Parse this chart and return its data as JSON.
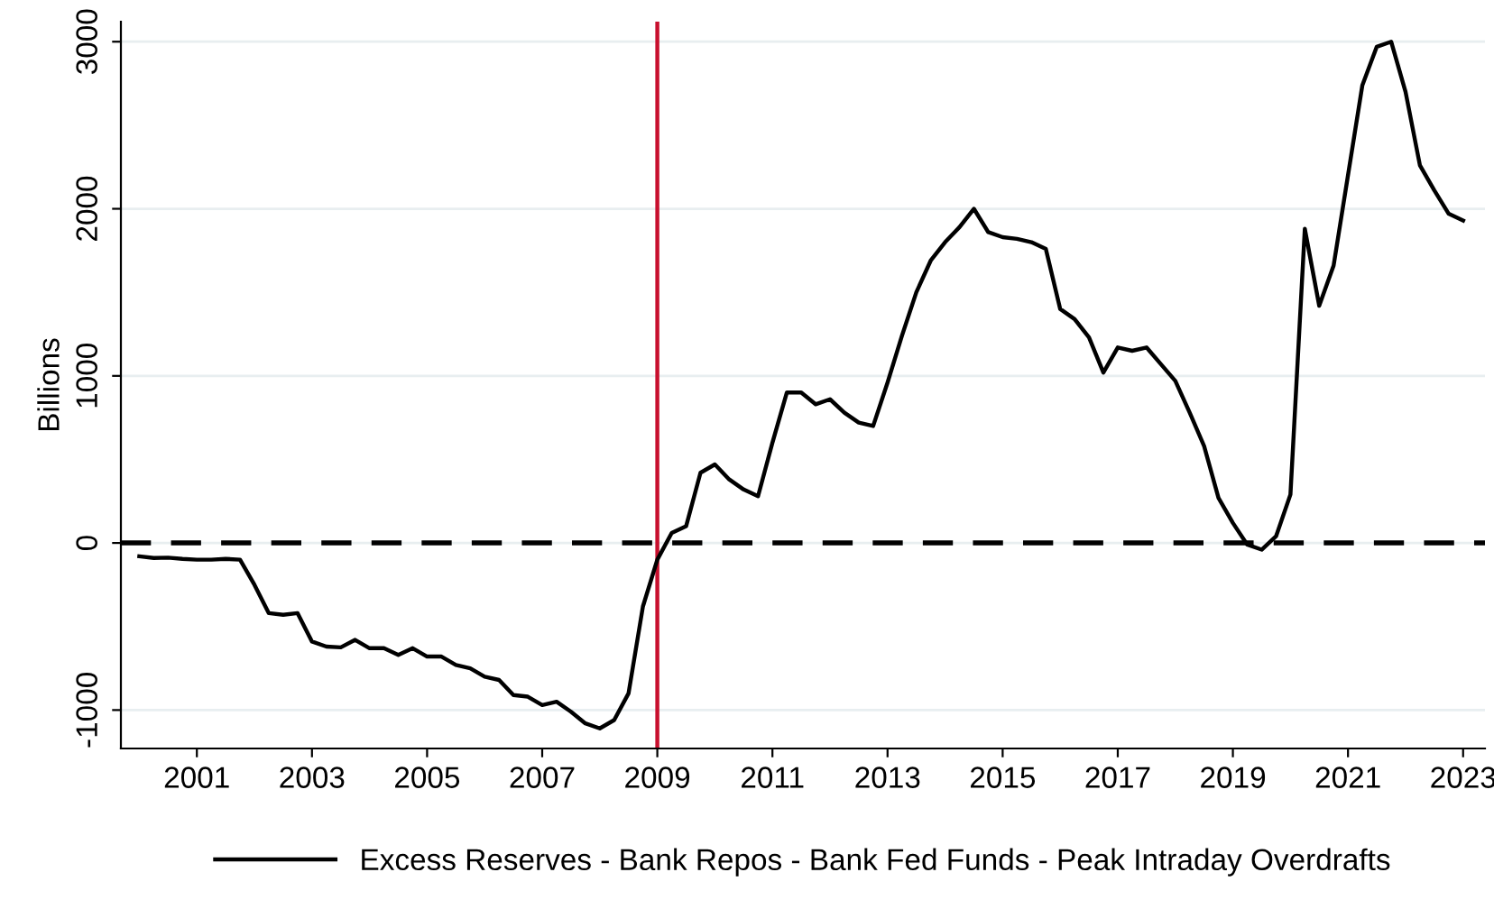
{
  "chart_data": {
    "type": "line",
    "ylabel": "Billions",
    "x": [
      2000.0,
      2000.25,
      2000.5,
      2000.75,
      2001.0,
      2001.25,
      2001.5,
      2001.75,
      2002.0,
      2002.25,
      2002.5,
      2002.75,
      2003.0,
      2003.25,
      2003.5,
      2003.75,
      2004.0,
      2004.25,
      2004.5,
      2004.75,
      2005.0,
      2005.25,
      2005.5,
      2005.75,
      2006.0,
      2006.25,
      2006.5,
      2006.75,
      2007.0,
      2007.25,
      2007.5,
      2007.75,
      2008.0,
      2008.25,
      2008.5,
      2008.75,
      2009.0,
      2009.25,
      2009.5,
      2009.75,
      2010.0,
      2010.25,
      2010.5,
      2010.75,
      2011.0,
      2011.25,
      2011.5,
      2011.75,
      2012.0,
      2012.25,
      2012.5,
      2012.75,
      2013.0,
      2013.25,
      2013.5,
      2013.75,
      2014.0,
      2014.25,
      2014.5,
      2014.75,
      2015.0,
      2015.25,
      2015.5,
      2015.75,
      2016.0,
      2016.25,
      2016.5,
      2016.75,
      2017.0,
      2017.25,
      2017.5,
      2017.75,
      2018.0,
      2018.25,
      2018.5,
      2018.75,
      2019.0,
      2019.25,
      2019.5,
      2019.75,
      2020.0,
      2020.25,
      2020.5,
      2020.75,
      2021.0,
      2021.25,
      2021.5,
      2021.75,
      2022.0,
      2022.25,
      2022.5,
      2022.75,
      2023.0
    ],
    "series": [
      {
        "name": "Excess Reserves - Bank Repos - Bank Fed Funds - Peak Intraday Overdrafts",
        "color": "#000000",
        "values": [
          -80,
          -90,
          -88,
          -95,
          -100,
          -100,
          -95,
          -100,
          -250,
          -420,
          -430,
          -420,
          -590,
          -620,
          -625,
          -580,
          -630,
          -630,
          -670,
          -630,
          -680,
          -680,
          -730,
          -750,
          -800,
          -820,
          -910,
          -920,
          -970,
          -950,
          -1010,
          -1080,
          -1110,
          -1060,
          -900,
          -380,
          -100,
          60,
          100,
          420,
          470,
          380,
          320,
          280,
          600,
          900,
          900,
          830,
          860,
          780,
          720,
          700,
          960,
          1240,
          1500,
          1690,
          1800,
          1890,
          2000,
          1860,
          1830,
          1820,
          1800,
          1760,
          1400,
          1340,
          1230,
          1020,
          1170,
          1150,
          1170,
          1070,
          970,
          780,
          580,
          270,
          120,
          -10,
          -40,
          40,
          290,
          1880,
          1420,
          1660,
          2200,
          2740,
          2970,
          3000,
          2700,
          2260,
          2110,
          1970,
          1930
        ]
      }
    ],
    "xlim": [
      1999.68,
      2023.38
    ],
    "xticks": [
      2001,
      2003,
      2005,
      2007,
      2009,
      2011,
      2013,
      2015,
      2017,
      2019,
      2021,
      2023
    ],
    "ylim": [
      -1230,
      3120
    ],
    "yticks": [
      -1000,
      0,
      1000,
      2000,
      3000
    ],
    "ref_lines": [
      {
        "axis": "y",
        "value": 0,
        "color": "#000000",
        "line_style": "dashed"
      },
      {
        "axis": "x",
        "value": 2009,
        "color": "#c8102e",
        "line_style": "solid"
      }
    ],
    "grid": "y",
    "legend": "bottom",
    "line_style": "solid",
    "marker": "none"
  }
}
